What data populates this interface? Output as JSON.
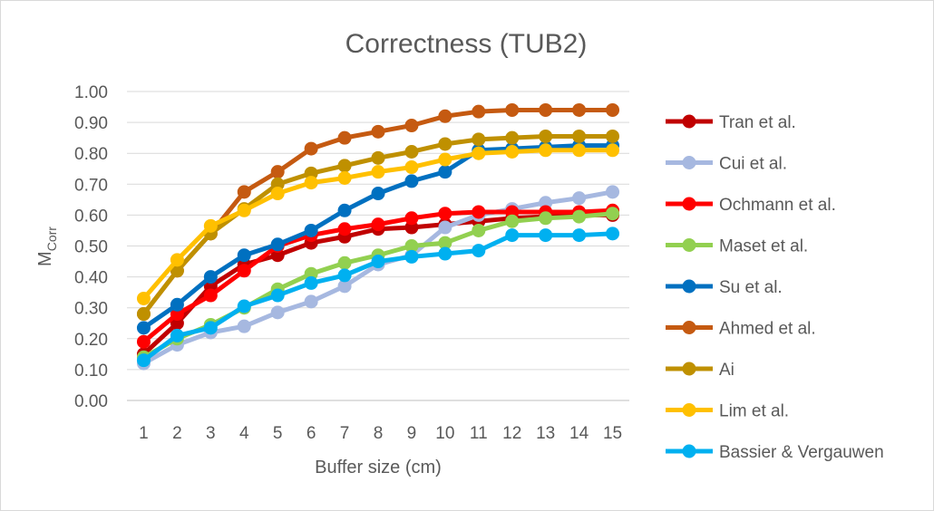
{
  "chart_data": {
    "type": "line",
    "title": "Correctness (TUB2)",
    "xlabel": "Buffer size (cm)",
    "ylabel_main": "M",
    "ylabel_sub": "Corr",
    "ylim": [
      0,
      1
    ],
    "yticks": [
      "0.00",
      "0.10",
      "0.20",
      "0.30",
      "0.40",
      "0.50",
      "0.60",
      "0.70",
      "0.80",
      "0.90",
      "1.00"
    ],
    "categories": [
      "1",
      "2",
      "3",
      "4",
      "5",
      "6",
      "7",
      "8",
      "9",
      "10",
      "11",
      "12",
      "13",
      "14",
      "15"
    ],
    "grid": true,
    "legend_position": "right",
    "series": [
      {
        "name": "Tran et al.",
        "color": "#C00000",
        "values": [
          0.15,
          0.25,
          0.37,
          0.44,
          0.47,
          0.51,
          0.53,
          0.555,
          0.56,
          0.57,
          0.58,
          0.59,
          0.595,
          0.6,
          0.6
        ]
      },
      {
        "name": "Cui et al.",
        "color": "#A6B8E0",
        "values": [
          0.12,
          0.18,
          0.22,
          0.24,
          0.285,
          0.32,
          0.37,
          0.44,
          0.47,
          0.56,
          0.6,
          0.62,
          0.64,
          0.655,
          0.675
        ]
      },
      {
        "name": "Ochmann et al.",
        "color": "#FF0000",
        "values": [
          0.19,
          0.28,
          0.34,
          0.42,
          0.5,
          0.535,
          0.555,
          0.57,
          0.59,
          0.605,
          0.61,
          0.61,
          0.61,
          0.61,
          0.615
        ]
      },
      {
        "name": "Maset et al.",
        "color": "#92D050",
        "values": [
          0.14,
          0.2,
          0.245,
          0.3,
          0.36,
          0.41,
          0.445,
          0.47,
          0.5,
          0.51,
          0.55,
          0.58,
          0.59,
          0.595,
          0.605
        ]
      },
      {
        "name": "Su et al.",
        "color": "#0070C0",
        "values": [
          0.235,
          0.31,
          0.4,
          0.47,
          0.505,
          0.55,
          0.615,
          0.67,
          0.71,
          0.74,
          0.81,
          0.815,
          0.82,
          0.825,
          0.825
        ]
      },
      {
        "name": "Ahmed et al.",
        "color": "#C55A11",
        "values": [
          0.28,
          0.42,
          0.54,
          0.675,
          0.74,
          0.815,
          0.85,
          0.87,
          0.89,
          0.92,
          0.935,
          0.94,
          0.94,
          0.94,
          0.94
        ]
      },
      {
        "name": "Ai",
        "color": "#BF9000",
        "values": [
          0.28,
          0.42,
          0.54,
          0.62,
          0.7,
          0.735,
          0.76,
          0.785,
          0.805,
          0.83,
          0.845,
          0.85,
          0.855,
          0.855,
          0.855
        ]
      },
      {
        "name": "Lim et al.",
        "color": "#FFC000",
        "values": [
          0.33,
          0.455,
          0.565,
          0.615,
          0.67,
          0.705,
          0.72,
          0.74,
          0.755,
          0.78,
          0.8,
          0.805,
          0.81,
          0.81,
          0.81
        ]
      },
      {
        "name": "Bassier & Vergauwen",
        "color": "#00B0F0",
        "values": [
          0.13,
          0.21,
          0.235,
          0.305,
          0.34,
          0.38,
          0.405,
          0.45,
          0.465,
          0.475,
          0.485,
          0.535,
          0.535,
          0.535,
          0.54
        ]
      }
    ]
  }
}
